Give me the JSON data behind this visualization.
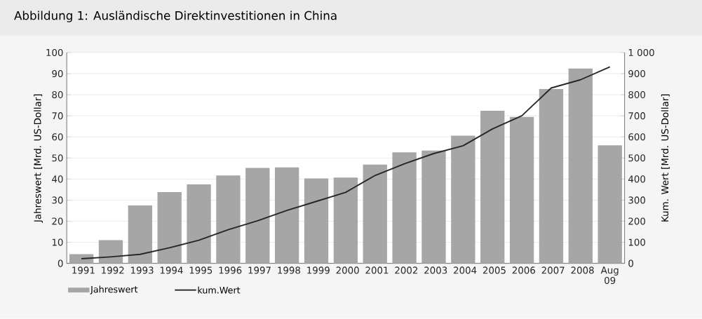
{
  "chart_data": {
    "type": "bar",
    "title": "Abbildung 1:   Ausländische Direktinvestitionen in China",
    "ylabel": "Jahreswert [Mrd. US-Dollar]",
    "y2label": "Kum. Wert [Mrd. US-Dollar]",
    "categories": [
      "1991",
      "1992",
      "1993",
      "1994",
      "1995",
      "1996",
      "1997",
      "1998",
      "1999",
      "2000",
      "2001",
      "2002",
      "2003",
      "2004",
      "2005",
      "2006",
      "2007",
      "2008",
      "Aug 09"
    ],
    "series": [
      {
        "name": "Jahreswert",
        "color": "#a6a6a6",
        "values": [
          4.4,
          11,
          27.5,
          33.8,
          37.5,
          41.7,
          45.3,
          45.5,
          40.3,
          40.7,
          46.9,
          52.7,
          53.5,
          60.6,
          72.4,
          69.5,
          82.7,
          92.4,
          56
        ]
      },
      {
        "name": "kum.Wert",
        "type": "line",
        "axis": "y2",
        "color": "#262626",
        "values": [
          22,
          31,
          43,
          74,
          110,
          160,
          202,
          251,
          294,
          337,
          417,
          472,
          521,
          558,
          638,
          700,
          832,
          871,
          932
        ]
      }
    ],
    "ylim": [
      0,
      100
    ],
    "yticks": [
      0,
      10,
      20,
      30,
      40,
      50,
      60,
      70,
      80,
      90,
      100
    ],
    "y2lim": [
      0,
      1000
    ],
    "y2ticks": [
      0,
      100,
      200,
      300,
      400,
      500,
      600,
      700,
      800,
      900,
      {
        "value": 1000,
        "label": "1 000"
      }
    ],
    "grid": "y",
    "legend": "bottom left"
  }
}
